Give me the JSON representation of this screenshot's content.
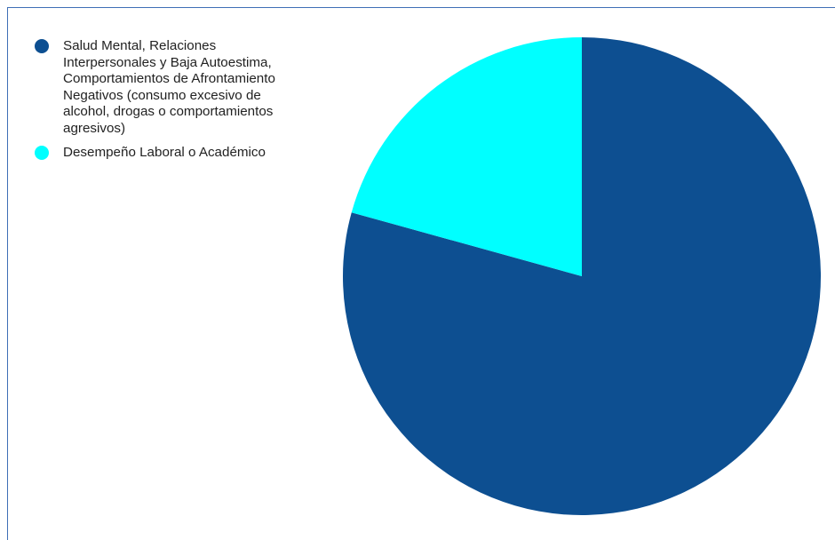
{
  "chart_data": {
    "type": "pie",
    "title": "",
    "legend_position": "left",
    "start_angle_deg": 0,
    "direction": "clockwise",
    "slices": [
      {
        "label": "Salud Mental, Relaciones Interpersonales y Baja Autoestima, Comportamientos de Afrontamiento Negativos (consumo excesivo de alcohol, drogas o comportamientos agresivos)",
        "value": 79.3,
        "color": "#0d4f91"
      },
      {
        "label": "Desempeño Laboral o Académico",
        "value": 20.7,
        "color": "#00ffff"
      }
    ]
  }
}
